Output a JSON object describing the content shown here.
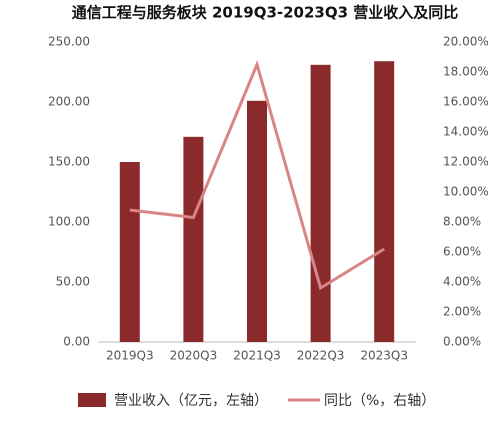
{
  "chart_data": {
    "type": "bar",
    "title": "通信工程与服务板块 2019Q3-2023Q3 营业收入及同比",
    "categories": [
      "2019Q3",
      "2020Q3",
      "2021Q3",
      "2022Q3",
      "2023Q3"
    ],
    "series": [
      {
        "name": "营业收入（亿元，左轴）",
        "color": "#8b2a2a",
        "type": "bar",
        "values": [
          150,
          171,
          201,
          231,
          234
        ]
      },
      {
        "name": "同比（%，右轴）",
        "color": "#d98585",
        "type": "line",
        "axis": "y2",
        "values": [
          8.8,
          8.3,
          18.5,
          3.6,
          6.2
        ]
      }
    ],
    "ylim": [
      0,
      250
    ],
    "yticks": [
      {
        "value": 0,
        "label": "0.00"
      },
      {
        "value": 50,
        "label": "50.00"
      },
      {
        "value": 100,
        "label": "100.00"
      },
      {
        "value": 150,
        "label": "150.00"
      },
      {
        "value": 200,
        "label": "200.00"
      },
      {
        "value": 250,
        "label": "250.00"
      }
    ],
    "y2lim": [
      0,
      20
    ],
    "y2ticks": [
      {
        "value": 0,
        "label": "0.00%"
      },
      {
        "value": 2,
        "label": "2.00%"
      },
      {
        "value": 4,
        "label": "4.00%"
      },
      {
        "value": 6,
        "label": "6.00%"
      },
      {
        "value": 8,
        "label": "8.00%"
      },
      {
        "value": 10,
        "label": "10.00%"
      },
      {
        "value": 12,
        "label": "12.00%"
      },
      {
        "value": 14,
        "label": "14.00%"
      },
      {
        "value": 16,
        "label": "16.00%"
      },
      {
        "value": 18,
        "label": "18.00%"
      },
      {
        "value": 20,
        "label": "20.00%"
      }
    ],
    "grid": false
  }
}
